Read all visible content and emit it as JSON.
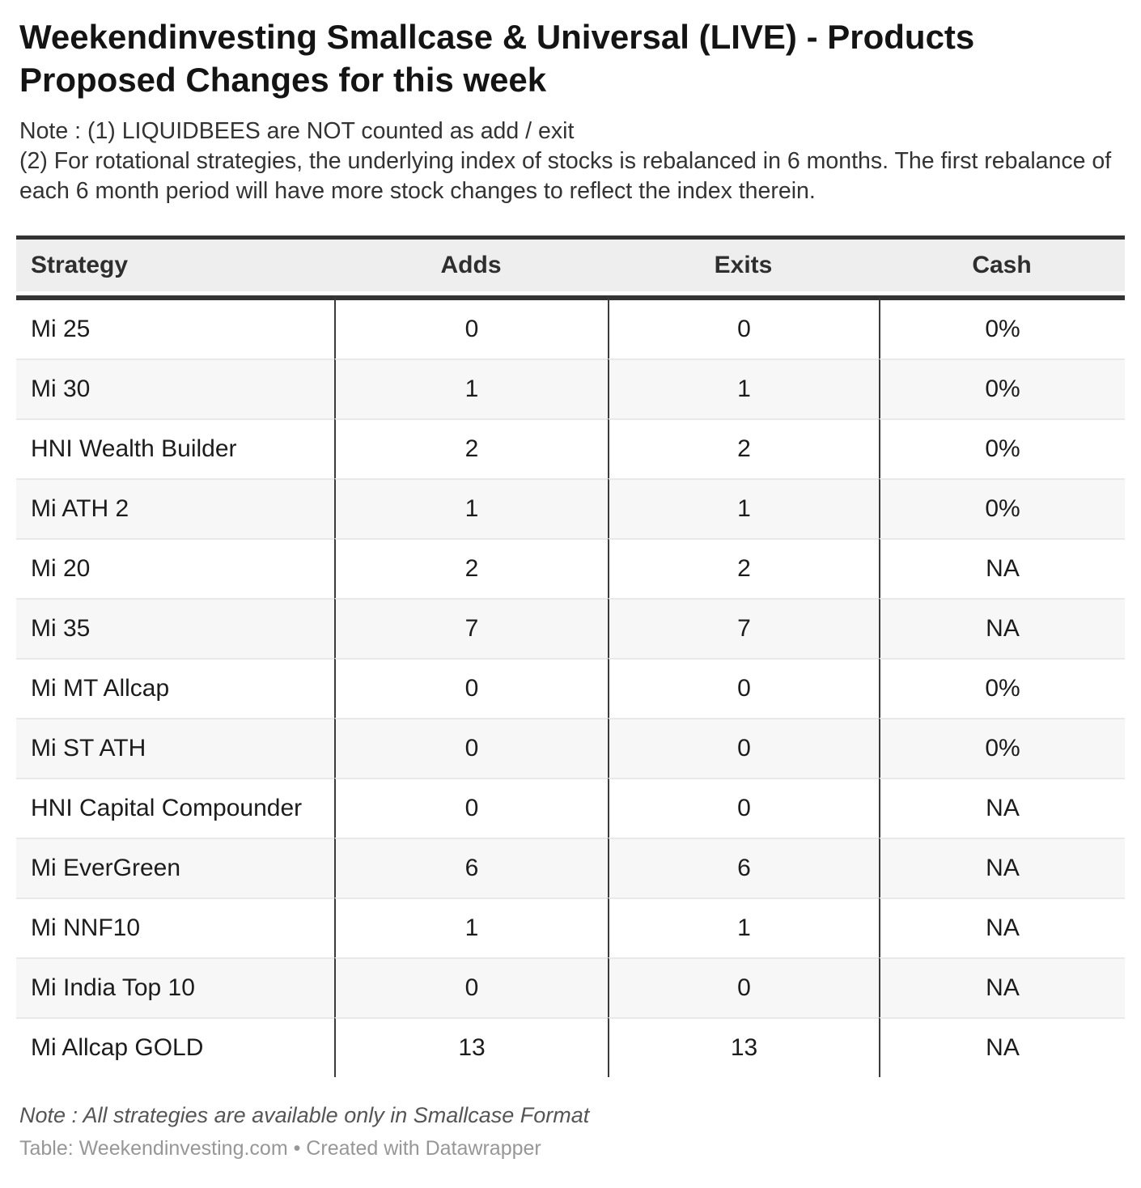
{
  "colors": {
    "rule_dark": "#333333",
    "header_bg": "#eeeeee",
    "zebra_bg": "#f7f7f7",
    "row_separator": "#e9e9e9",
    "attribution_text": "#979797"
  },
  "chart_data": {
    "type": "table",
    "title": "Weekendinvesting Smallcase & Universal (LIVE) - Products Proposed Changes for this week",
    "notes": [
      "Note : (1) LIQUIDBEES are NOT counted as add / exit",
      "(2) For rotational strategies, the underlying index of stocks is rebalanced in 6 months. The first rebalance of each 6 month period will have more stock changes to reflect the index therein."
    ],
    "columns": [
      "Strategy",
      "Adds",
      "Exits",
      "Cash"
    ],
    "rows": [
      {
        "strategy": "Mi 25",
        "adds": "0",
        "exits": "0",
        "cash": "0%"
      },
      {
        "strategy": "Mi 30",
        "adds": "1",
        "exits": "1",
        "cash": "0%"
      },
      {
        "strategy": "HNI Wealth Builder",
        "adds": "2",
        "exits": "2",
        "cash": "0%"
      },
      {
        "strategy": "Mi ATH 2",
        "adds": "1",
        "exits": "1",
        "cash": "0%"
      },
      {
        "strategy": "Mi 20",
        "adds": "2",
        "exits": "2",
        "cash": "NA"
      },
      {
        "strategy": "Mi 35",
        "adds": "7",
        "exits": "7",
        "cash": "NA"
      },
      {
        "strategy": "Mi MT Allcap",
        "adds": "0",
        "exits": "0",
        "cash": "0%"
      },
      {
        "strategy": "Mi ST ATH",
        "adds": "0",
        "exits": "0",
        "cash": "0%"
      },
      {
        "strategy": "HNI Capital Compounder",
        "adds": "0",
        "exits": "0",
        "cash": "NA"
      },
      {
        "strategy": "Mi EverGreen",
        "adds": "6",
        "exits": "6",
        "cash": "NA"
      },
      {
        "strategy": "Mi NNF10",
        "adds": "1",
        "exits": "1",
        "cash": "NA"
      },
      {
        "strategy": "Mi India Top 10",
        "adds": "0",
        "exits": "0",
        "cash": "NA"
      },
      {
        "strategy": "Mi Allcap GOLD",
        "adds": "13",
        "exits": "13",
        "cash": "NA"
      }
    ],
    "footer_note": "Note : All strategies are available only in Smallcase Format",
    "attribution": "Table: Weekendinvesting.com • Created with Datawrapper"
  }
}
